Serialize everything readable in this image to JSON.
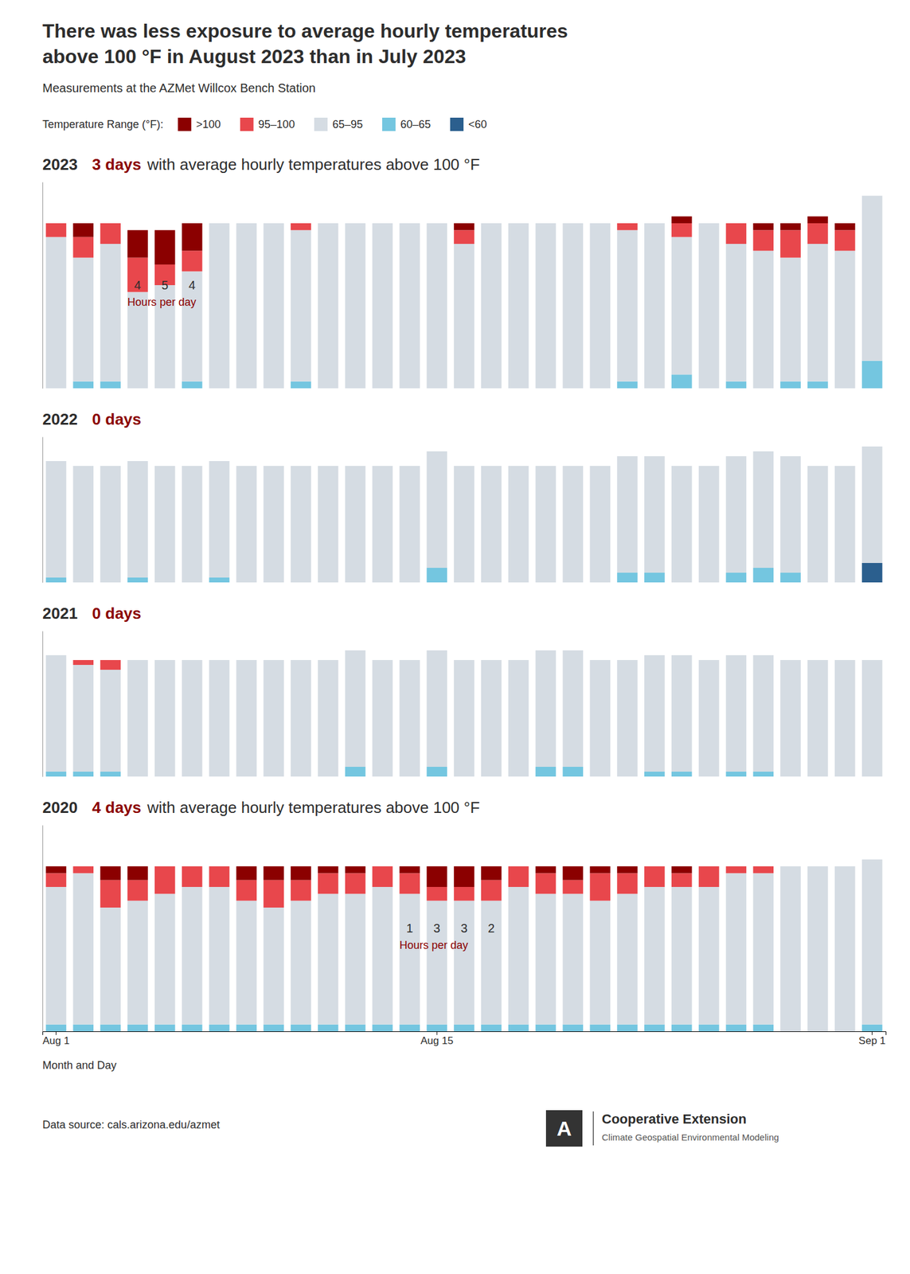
{
  "title": [
    "There was less exposure to average hourly temperatures",
    "above 100 °F in August 2023 than in July 2023"
  ],
  "subtitle": "Measurements at the AZMet Willcox Bench Station",
  "source": "Data source: cals.arizona.edu/azmet",
  "annotations": [
    "A",
    "Cooperative Extension",
    "Climate Geospatial Environmental Modeling"
  ],
  "chart_data": [
    {
      "type": "bar",
      "stacked": true,
      "title": "2023",
      "subtitle": [
        "3 days",
        "with average hourly temperatures above 100 °F"
      ],
      "legend": "top",
      "legend_title": "Temperature Range (°F):",
      "tick_labels": false,
      "grid": false,
      "categories": [
        "Aug 1",
        null,
        null,
        null,
        null,
        null,
        null,
        null,
        null,
        null,
        null,
        null,
        null,
        null,
        "Aug 15",
        null,
        null,
        null,
        null,
        null,
        null,
        null,
        null,
        null,
        null,
        null,
        null,
        null,
        null,
        null,
        "Sep 1"
      ],
      "ylim": [
        0,
        30
      ],
      "series": [
        {
          "name": "<60",
          "color": "#2B5F8E",
          "values": [
            0,
            0,
            0,
            0,
            0,
            0,
            0,
            0,
            0,
            0,
            0,
            0,
            0,
            0,
            0,
            0,
            0,
            0,
            0,
            0,
            0,
            0,
            0,
            0,
            0,
            0,
            0,
            0,
            0,
            0,
            0
          ]
        },
        {
          "name": "60–65",
          "color": "#74C6E0",
          "values": [
            0,
            1,
            1,
            0,
            0,
            1,
            0,
            0,
            0,
            1,
            0,
            0,
            0,
            0,
            0,
            0,
            0,
            0,
            0,
            0,
            0,
            1,
            0,
            2,
            0,
            1,
            0,
            1,
            1,
            0,
            4
          ]
        },
        {
          "name": "65–95",
          "color": "#D5DCE3",
          "values": [
            22,
            18,
            20,
            14,
            15,
            16,
            24,
            24,
            24,
            22,
            24,
            24,
            24,
            24,
            24,
            21,
            24,
            24,
            24,
            24,
            24,
            22,
            24,
            20,
            24,
            20,
            20,
            18,
            20,
            20,
            24
          ]
        },
        {
          "name": "95–100",
          "color": "#E8474C",
          "values": [
            2,
            3,
            3,
            5,
            3,
            3,
            0,
            0,
            0,
            1,
            0,
            0,
            0,
            0,
            0,
            2,
            0,
            0,
            0,
            0,
            0,
            1,
            0,
            2,
            0,
            3,
            3,
            4,
            3,
            3,
            0
          ]
        },
        {
          "name": ">100",
          "color": "#8B0000",
          "values": [
            0,
            2,
            0,
            4,
            5,
            4,
            0,
            0,
            0,
            0,
            0,
            0,
            0,
            0,
            0,
            1,
            0,
            0,
            0,
            0,
            0,
            0,
            0,
            1,
            0,
            0,
            1,
            1,
            1,
            1,
            0
          ],
          "value_labels": [
            null,
            null,
            null,
            "4",
            "5",
            "4",
            null,
            null,
            null,
            null,
            null,
            null,
            null,
            null,
            null,
            null,
            null,
            null,
            null,
            null,
            null,
            null,
            null,
            null,
            null,
            null,
            null,
            null,
            null,
            null,
            null
          ]
        }
      ],
      "annotations": [
        "Hours per day"
      ]
    },
    {
      "type": "bar",
      "stacked": true,
      "title": "2022",
      "subtitle": [
        "0 days"
      ],
      "tick_labels": false,
      "grid": false,
      "categories": [
        "Aug 1",
        null,
        null,
        null,
        null,
        null,
        null,
        null,
        null,
        null,
        null,
        null,
        null,
        null,
        "Aug 15",
        null,
        null,
        null,
        null,
        null,
        null,
        null,
        null,
        null,
        null,
        null,
        null,
        null,
        null,
        null,
        "Sep 1"
      ],
      "ylim": [
        0,
        30
      ],
      "series": [
        {
          "name": "<60",
          "color": "#2B5F8E",
          "values": [
            0,
            0,
            0,
            0,
            0,
            0,
            0,
            0,
            0,
            0,
            0,
            0,
            0,
            0,
            0,
            0,
            0,
            0,
            0,
            0,
            0,
            0,
            0,
            0,
            0,
            0,
            0,
            0,
            0,
            0,
            4
          ]
        },
        {
          "name": "60–65",
          "color": "#74C6E0",
          "values": [
            1,
            0,
            0,
            1,
            0,
            0,
            1,
            0,
            0,
            0,
            0,
            0,
            0,
            0,
            3,
            0,
            0,
            0,
            0,
            0,
            0,
            2,
            2,
            0,
            0,
            2,
            3,
            2,
            0,
            0,
            0
          ]
        },
        {
          "name": "65–95",
          "color": "#D5DCE3",
          "values": [
            24,
            24,
            24,
            24,
            24,
            24,
            24,
            24,
            24,
            24,
            24,
            24,
            24,
            24,
            24,
            24,
            24,
            24,
            24,
            24,
            24,
            24,
            24,
            24,
            24,
            24,
            24,
            24,
            24,
            24,
            24
          ]
        },
        {
          "name": "95–100",
          "color": "#E8474C",
          "values": [
            0,
            0,
            0,
            0,
            0,
            0,
            0,
            0,
            0,
            0,
            0,
            0,
            0,
            0,
            0,
            0,
            0,
            0,
            0,
            0,
            0,
            0,
            0,
            0,
            0,
            0,
            0,
            0,
            0,
            0,
            0
          ]
        },
        {
          "name": ">100",
          "color": "#8B0000",
          "values": [
            0,
            0,
            0,
            0,
            0,
            0,
            0,
            0,
            0,
            0,
            0,
            0,
            0,
            0,
            0,
            0,
            0,
            0,
            0,
            0,
            0,
            0,
            0,
            0,
            0,
            0,
            0,
            0,
            0,
            0,
            0
          ]
        }
      ]
    },
    {
      "type": "bar",
      "stacked": true,
      "title": "2021",
      "subtitle": [
        "0 days"
      ],
      "tick_labels": false,
      "grid": false,
      "categories": [
        "Aug 1",
        null,
        null,
        null,
        null,
        null,
        null,
        null,
        null,
        null,
        null,
        null,
        null,
        null,
        "Aug 15",
        null,
        null,
        null,
        null,
        null,
        null,
        null,
        null,
        null,
        null,
        null,
        null,
        null,
        null,
        null,
        "Sep 1"
      ],
      "ylim": [
        0,
        30
      ],
      "series": [
        {
          "name": "<60",
          "color": "#2B5F8E",
          "values": [
            0,
            0,
            0,
            0,
            0,
            0,
            0,
            0,
            0,
            0,
            0,
            0,
            0,
            0,
            0,
            0,
            0,
            0,
            0,
            0,
            0,
            0,
            0,
            0,
            0,
            0,
            0,
            0,
            0,
            0,
            0
          ]
        },
        {
          "name": "60–65",
          "color": "#74C6E0",
          "values": [
            1,
            1,
            1,
            0,
            0,
            0,
            0,
            0,
            0,
            0,
            0,
            2,
            0,
            0,
            2,
            0,
            0,
            0,
            2,
            2,
            0,
            0,
            1,
            1,
            0,
            1,
            1,
            0,
            0,
            0,
            0
          ]
        },
        {
          "name": "65–95",
          "color": "#D5DCE3",
          "values": [
            24,
            22,
            21,
            24,
            24,
            24,
            24,
            24,
            24,
            24,
            24,
            24,
            24,
            24,
            24,
            24,
            24,
            24,
            24,
            24,
            24,
            24,
            24,
            24,
            24,
            24,
            24,
            24,
            24,
            24,
            24
          ]
        },
        {
          "name": "95–100",
          "color": "#E8474C",
          "values": [
            0,
            1,
            2,
            0,
            0,
            0,
            0,
            0,
            0,
            0,
            0,
            0,
            0,
            0,
            0,
            0,
            0,
            0,
            0,
            0,
            0,
            0,
            0,
            0,
            0,
            0,
            0,
            0,
            0,
            0,
            0
          ]
        },
        {
          "name": ">100",
          "color": "#8B0000",
          "values": [
            0,
            0,
            0,
            0,
            0,
            0,
            0,
            0,
            0,
            0,
            0,
            0,
            0,
            0,
            0,
            0,
            0,
            0,
            0,
            0,
            0,
            0,
            0,
            0,
            0,
            0,
            0,
            0,
            0,
            0,
            0
          ]
        }
      ]
    },
    {
      "type": "bar",
      "stacked": true,
      "title": "2020",
      "subtitle": [
        "4 days",
        "with average hourly temperatures above 100 °F"
      ],
      "tick_labels": "x",
      "grid": false,
      "xlabel": "Month and Day",
      "categories": [
        "Aug 1",
        null,
        null,
        null,
        null,
        null,
        null,
        null,
        null,
        null,
        null,
        null,
        null,
        null,
        "Aug 15",
        null,
        null,
        null,
        null,
        null,
        null,
        null,
        null,
        null,
        null,
        null,
        null,
        null,
        null,
        null,
        "Sep 1"
      ],
      "ylim": [
        0,
        30
      ],
      "series": [
        {
          "name": "<60",
          "color": "#2B5F8E",
          "values": [
            0,
            0,
            0,
            0,
            0,
            0,
            0,
            0,
            0,
            0,
            0,
            0,
            0,
            0,
            0,
            0,
            0,
            0,
            0,
            0,
            0,
            0,
            0,
            0,
            0,
            0,
            0,
            0,
            0,
            0,
            0
          ]
        },
        {
          "name": "60–65",
          "color": "#74C6E0",
          "values": [
            1,
            1,
            1,
            1,
            1,
            1,
            1,
            1,
            1,
            1,
            1,
            1,
            1,
            1,
            1,
            1,
            1,
            1,
            1,
            1,
            1,
            1,
            1,
            1,
            1,
            1,
            1,
            0,
            0,
            0,
            1
          ]
        },
        {
          "name": "65–95",
          "color": "#D5DCE3",
          "values": [
            20,
            22,
            17,
            18,
            19,
            20,
            20,
            18,
            17,
            18,
            19,
            19,
            20,
            19,
            18,
            18,
            18,
            20,
            19,
            19,
            18,
            19,
            20,
            20,
            20,
            22,
            22,
            24,
            24,
            24,
            24
          ]
        },
        {
          "name": "95–100",
          "color": "#E8474C",
          "values": [
            2,
            1,
            4,
            3,
            4,
            3,
            3,
            3,
            4,
            3,
            3,
            3,
            3,
            3,
            2,
            2,
            3,
            3,
            3,
            2,
            4,
            3,
            3,
            2,
            3,
            1,
            1,
            0,
            0,
            0,
            0
          ]
        },
        {
          "name": ">100",
          "color": "#8B0000",
          "values": [
            1,
            0,
            2,
            2,
            0,
            0,
            0,
            2,
            2,
            2,
            1,
            1,
            0,
            1,
            3,
            3,
            2,
            0,
            1,
            2,
            1,
            1,
            0,
            1,
            0,
            0,
            0,
            0,
            0,
            0,
            0
          ],
          "value_labels": [
            null,
            null,
            null,
            null,
            null,
            null,
            null,
            null,
            null,
            null,
            null,
            null,
            null,
            "1",
            "3",
            "3",
            "2",
            null,
            null,
            null,
            null,
            null,
            null,
            null,
            null,
            null,
            null,
            null,
            null,
            null,
            null
          ]
        }
      ],
      "annotations": [
        "Hours per day"
      ]
    }
  ]
}
